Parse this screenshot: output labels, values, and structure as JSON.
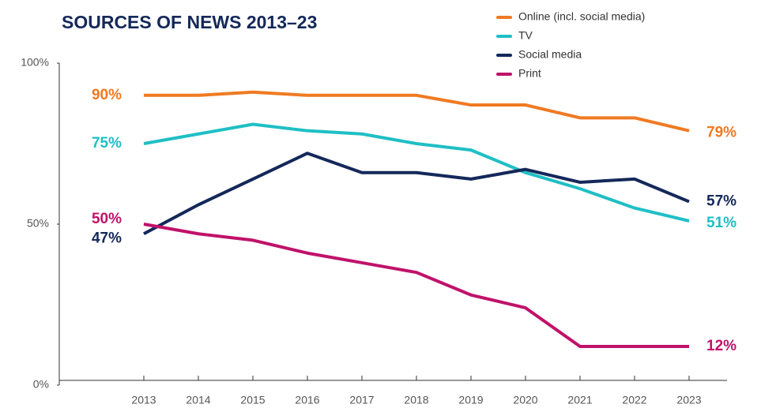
{
  "chart_data": {
    "type": "line",
    "title": "SOURCES OF NEWS 2013–23",
    "categories": [
      "2013",
      "2014",
      "2015",
      "2016",
      "2017",
      "2018",
      "2019",
      "2020",
      "2021",
      "2022",
      "2023"
    ],
    "series": [
      {
        "name": "Online (incl. social media)",
        "color": "#f07a22",
        "values": [
          90,
          90,
          91,
          90,
          90,
          90,
          87,
          87,
          83,
          83,
          79
        ],
        "value_labels": [
          "90%",
          null,
          null,
          null,
          null,
          null,
          null,
          null,
          null,
          null,
          "79%"
        ]
      },
      {
        "name": "TV",
        "color": "#1fbfc5",
        "values": [
          75,
          78,
          81,
          79,
          78,
          75,
          73,
          66,
          61,
          55,
          51
        ],
        "value_labels": [
          "75%",
          null,
          null,
          null,
          null,
          null,
          null,
          null,
          null,
          null,
          "51%"
        ]
      },
      {
        "name": "Social media",
        "color": "#14285a",
        "values": [
          47,
          56,
          64,
          72,
          66,
          66,
          64,
          67,
          63,
          64,
          57
        ],
        "value_labels": [
          "47%",
          null,
          null,
          null,
          null,
          null,
          null,
          null,
          null,
          null,
          "57%"
        ]
      },
      {
        "name": "Print",
        "color": "#c0126a",
        "values": [
          50,
          47,
          45,
          41,
          38,
          35,
          28,
          24,
          12,
          12,
          12
        ],
        "value_labels": [
          "50%",
          null,
          null,
          null,
          null,
          null,
          null,
          null,
          null,
          null,
          "12%"
        ]
      }
    ],
    "ylim": [
      0,
      100
    ],
    "yticks": [
      {
        "value": 0,
        "label": "0%"
      },
      {
        "value": 50,
        "label": "50%"
      },
      {
        "value": 100,
        "label": "100%"
      }
    ],
    "grid": false
  }
}
